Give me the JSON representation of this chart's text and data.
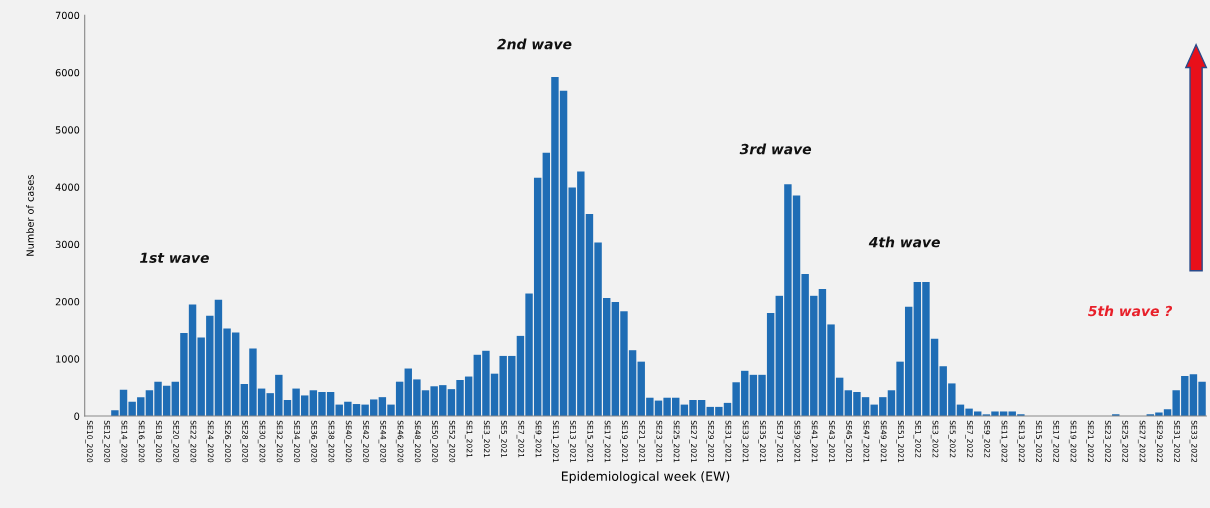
{
  "chart_data": {
    "type": "bar",
    "xlabel": "Epidemiological week (EW)",
    "ylabel": "Number of cases",
    "categories": [
      "SE10_2020",
      null,
      "SE12_2020",
      null,
      "SE14_2020",
      null,
      "SE16_2020",
      null,
      "SE18_2020",
      null,
      "SE20_2020",
      null,
      "SE22_2020",
      null,
      "SE24_2020",
      null,
      "SE26_2020",
      null,
      "SE28_2020",
      null,
      "SE30_2020",
      null,
      "SE32_2020",
      null,
      "SE34_2020",
      null,
      "SE36_2020",
      null,
      "SE38_2020",
      null,
      "SE40_2020",
      null,
      "SE42_2020",
      null,
      "SE44_2020",
      null,
      "SE46_2020",
      null,
      "SE48_2020",
      null,
      "SE50_2020",
      null,
      "SE52_2020",
      null,
      "SE1_2021",
      null,
      "SE3_2021",
      null,
      "SE5_2021",
      null,
      "SE7_2021",
      null,
      "SE9_2021",
      null,
      "SE11_2021",
      null,
      "SE13_2021",
      null,
      "SE15_2021",
      null,
      "SE17_2021",
      null,
      "SE19_2021",
      null,
      "SE21_2021",
      null,
      "SE23_2021",
      null,
      "SE25_2021",
      null,
      "SE27_2021",
      null,
      "SE29_2021",
      null,
      "SE31_2021",
      null,
      "SE33_2021",
      null,
      "SE35_2021",
      null,
      "SE37_2021",
      null,
      "SE39_2021",
      null,
      "SE41_2021",
      null,
      "SE43_2021",
      null,
      "SE45_2021",
      null,
      "SE47_2021",
      null,
      "SE49_2021",
      null,
      "SE51_2021",
      null,
      "SE1_2022",
      null,
      "SE3_2022",
      null,
      "SE5_2022",
      null,
      "SE7_2022",
      null,
      "SE9_2022",
      null,
      "SE11_2022",
      null,
      "SE13_2022",
      null,
      "SE15_2022",
      null,
      "SE17_2022",
      null,
      "SE19_2022",
      null,
      "SE21_2022",
      null,
      "SE23_2022",
      null,
      "SE25_2022",
      null,
      "SE27_2022",
      null,
      "SE29_2022",
      null,
      "SE31_2022",
      null,
      "SE33_2022",
      null
    ],
    "values": [
      0,
      0,
      0,
      100,
      460,
      250,
      330,
      450,
      600,
      530,
      600,
      1450,
      1950,
      1370,
      1750,
      2030,
      1530,
      1460,
      560,
      1180,
      480,
      400,
      720,
      280,
      480,
      360,
      450,
      420,
      420,
      200,
      250,
      210,
      200,
      290,
      330,
      200,
      600,
      830,
      640,
      450,
      520,
      540,
      470,
      630,
      690,
      1070,
      1140,
      740,
      1050,
      1050,
      1400,
      2140,
      4160,
      4600,
      5920,
      5680,
      3990,
      4270,
      3530,
      3030,
      2060,
      1990,
      1830,
      1150,
      950,
      320,
      270,
      320,
      320,
      200,
      280,
      280,
      160,
      160,
      230,
      590,
      790,
      720,
      720,
      1800,
      2100,
      4050,
      3850,
      2480,
      2100,
      2220,
      1600,
      670,
      450,
      420,
      330,
      200,
      330,
      450,
      950,
      1910,
      2340,
      2340,
      1350,
      870,
      570,
      200,
      130,
      80,
      30,
      80,
      80,
      80,
      30,
      0,
      0,
      0,
      0,
      0,
      0,
      0,
      0,
      0,
      0,
      30,
      0,
      0,
      0,
      30,
      60,
      120,
      450,
      700,
      730,
      600
    ],
    "color": "#1f6db5",
    "ylim": [
      0,
      7000
    ],
    "yticks": [
      0,
      1000,
      2000,
      3000,
      4000,
      5000,
      6000,
      7000
    ],
    "grid": false,
    "legend": false,
    "annotations": [
      "1st wave",
      "2nd wave",
      "3rd wave",
      "4th wave",
      "5th wave ?"
    ]
  }
}
